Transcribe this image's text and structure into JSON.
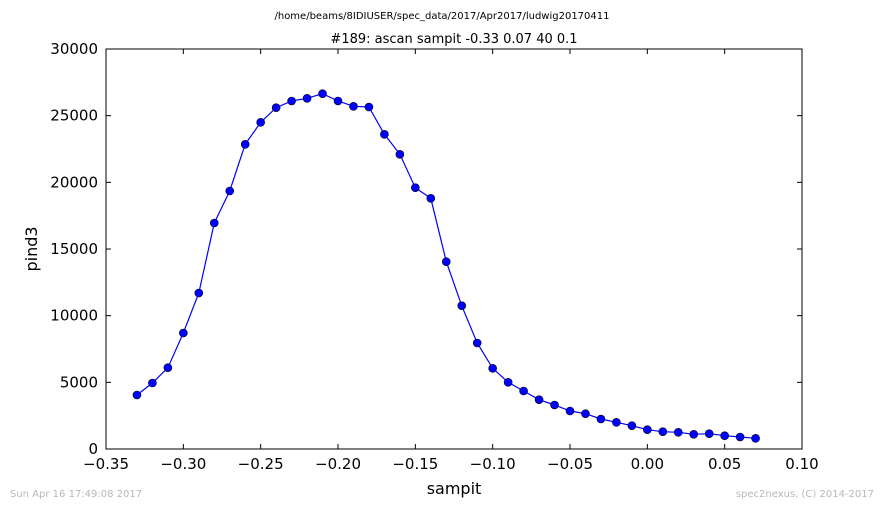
{
  "chart_data": {
    "type": "line",
    "suptitle": "/home/beams/8IDIUSER/spec_data/2017/Apr2017/ludwig20170411",
    "title": "#189: ascan  sampit -0.33 0.07  40 0.1",
    "xlabel": "sampit",
    "ylabel": "pind3",
    "xlim": [
      -0.35,
      0.1
    ],
    "ylim": [
      0,
      30000
    ],
    "xticks": [
      -0.35,
      -0.3,
      -0.25,
      -0.2,
      -0.15,
      -0.1,
      -0.05,
      0.0,
      0.05,
      0.1
    ],
    "xtick_labels": [
      "−0.35",
      "−0.30",
      "−0.25",
      "−0.20",
      "−0.15",
      "−0.10",
      "−0.05",
      "0.00",
      "0.05",
      "0.10"
    ],
    "yticks": [
      0,
      5000,
      10000,
      15000,
      20000,
      25000,
      30000
    ],
    "ytick_labels": [
      "0",
      "5000",
      "10000",
      "15000",
      "20000",
      "25000",
      "30000"
    ],
    "grid": false,
    "series": [
      {
        "color": "#0000ff",
        "marker": "circle",
        "x": [
          -0.33,
          -0.32,
          -0.31,
          -0.3,
          -0.29,
          -0.28,
          -0.27,
          -0.26,
          -0.25,
          -0.24,
          -0.23,
          -0.22,
          -0.21,
          -0.2,
          -0.19,
          -0.18,
          -0.17,
          -0.16,
          -0.15,
          -0.14,
          -0.13,
          -0.12,
          -0.11,
          -0.1,
          -0.09,
          -0.08,
          -0.07,
          -0.06,
          -0.05,
          -0.04,
          -0.03,
          -0.02,
          -0.01,
          0.0,
          0.01,
          0.02,
          0.03,
          0.04,
          0.05,
          0.06,
          0.07
        ],
        "y": [
          4050,
          4950,
          6100,
          8700,
          11700,
          16950,
          19350,
          22850,
          24500,
          25600,
          26100,
          26300,
          26650,
          26100,
          25700,
          25650,
          23600,
          22100,
          19600,
          18800,
          14050,
          10750,
          7950,
          6050,
          5000,
          4350,
          3700,
          3300,
          2850,
          2650,
          2250,
          2000,
          1750,
          1450,
          1300,
          1250,
          1100,
          1150,
          1000,
          900,
          800
        ]
      }
    ]
  },
  "footer": {
    "timestamp": "Sun Apr 16 17:49:08 2017",
    "credit": "spec2nexus, (C) 2014-2017"
  }
}
